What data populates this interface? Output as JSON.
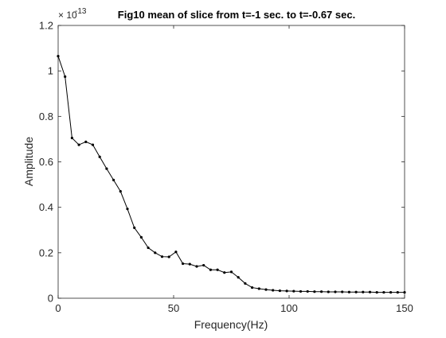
{
  "chart_data": {
    "type": "line",
    "title": "Fig10 mean of slice from t=-1 sec. to t=-0.67 sec.",
    "xlabel": "Frequency(Hz)",
    "ylabel": "Amplitude",
    "y_exponent_base": "× 10",
    "y_exponent_power": "-13",
    "xlim": [
      0,
      150
    ],
    "ylim": [
      0,
      1.2
    ],
    "x_ticks": [
      {
        "value": 0,
        "label": "0"
      },
      {
        "value": 50,
        "label": "50"
      },
      {
        "value": 100,
        "label": "100"
      },
      {
        "value": 150,
        "label": "150"
      }
    ],
    "y_ticks": [
      {
        "value": 0,
        "label": "0"
      },
      {
        "value": 0.2,
        "label": "0.2"
      },
      {
        "value": 0.4,
        "label": "0.4"
      },
      {
        "value": 0.6,
        "label": "0.6"
      },
      {
        "value": 0.8,
        "label": "0.8"
      },
      {
        "value": 1.0,
        "label": "1"
      },
      {
        "value": 1.2,
        "label": "1.2"
      }
    ],
    "grid": false,
    "line_color": "#000000",
    "series": [
      {
        "x": [
          0,
          3,
          6,
          9,
          12,
          15,
          18,
          21,
          24,
          27,
          30,
          33,
          36,
          39,
          42,
          45,
          48,
          51,
          54,
          57,
          60,
          63,
          66,
          69,
          72,
          75,
          78,
          81,
          84,
          87,
          90,
          93,
          96,
          99,
          102,
          105,
          108,
          111,
          114,
          117,
          120,
          123,
          126,
          129,
          132,
          135,
          138,
          141,
          144,
          147,
          150
        ],
        "y": [
          1.065,
          0.975,
          0.705,
          0.675,
          0.688,
          0.675,
          0.622,
          0.57,
          0.52,
          0.47,
          0.393,
          0.31,
          0.268,
          0.222,
          0.2,
          0.183,
          0.182,
          0.204,
          0.152,
          0.15,
          0.14,
          0.145,
          0.125,
          0.125,
          0.113,
          0.116,
          0.092,
          0.065,
          0.047,
          0.042,
          0.038,
          0.035,
          0.033,
          0.032,
          0.031,
          0.03,
          0.03,
          0.029,
          0.029,
          0.028,
          0.028,
          0.028,
          0.027,
          0.027,
          0.027,
          0.027,
          0.026,
          0.026,
          0.026,
          0.026,
          0.026
        ]
      }
    ]
  }
}
